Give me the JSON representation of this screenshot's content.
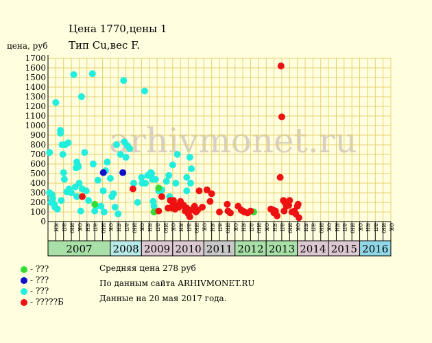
{
  "title_line1": "Цена 1770,цены 1",
  "title_line2": "Тип Cu,вес F.",
  "ylabel": "цена, руб",
  "watermark": "arhivmonet.ru",
  "legend": [
    {
      "label": "- ???",
      "color": "#33dd33"
    },
    {
      "label": "- ???",
      "color": "#1111cc"
    },
    {
      "label": "- ???",
      "color": "#22eedd"
    },
    {
      "label": "- ?????Б",
      "color": "#ee1111"
    }
  ],
  "info_lines": [
    "Средняя цена 278 руб",
    "По данным сайта ARHIVMONET.RU",
    "Данные на 20 мая 2017 года."
  ],
  "chart_data": {
    "type": "scatter",
    "ylim": [
      0,
      1700
    ],
    "yticks": [
      0,
      100,
      200,
      300,
      400,
      500,
      600,
      700,
      800,
      900,
      1000,
      1100,
      1200,
      1300,
      1400,
      1500,
      1600,
      1700
    ],
    "grid": true,
    "years": [
      {
        "label": "2007",
        "start": 0,
        "end": 4,
        "color": "#a8e0a8"
      },
      {
        "label": "2008",
        "start": 4,
        "end": 6,
        "color": "#b8eae8"
      },
      {
        "label": "2009",
        "start": 6,
        "end": 8,
        "color": "#dcc8d0"
      },
      {
        "label": "2010",
        "start": 8,
        "end": 10,
        "color": "#dcc8d0"
      },
      {
        "label": "2011",
        "start": 10,
        "end": 12,
        "color": "#c8c8c8"
      },
      {
        "label": "2012",
        "start": 12,
        "end": 14,
        "color": "#a8e0a8"
      },
      {
        "label": "2013",
        "start": 14,
        "end": 16,
        "color": "#a8e0a8"
      },
      {
        "label": "2014",
        "start": 16,
        "end": 18,
        "color": "#dcc8d0"
      },
      {
        "label": "2015",
        "start": 18,
        "end": 20,
        "color": "#dcc8d0"
      },
      {
        "label": "2016",
        "start": 20,
        "end": 22,
        "color": "#90d8e8"
      }
    ],
    "months": [
      "ян",
      "ап",
      "ию",
      "ок",
      "ян",
      "ап",
      "ию",
      "ок",
      "ян",
      "ап",
      "ию",
      "ок",
      "ян",
      "ап",
      "ию",
      "ок",
      "ян",
      "ап",
      "ию",
      "ок",
      "ян",
      "ап",
      "ию",
      "ок",
      "ян",
      "ап",
      "ию",
      "ок",
      "ян",
      "ап",
      "ию",
      "ок",
      "ян",
      "ап",
      "ию",
      "ок",
      "ян",
      "ап",
      "ию",
      "ок",
      "ян",
      "ап",
      "ию",
      "ок"
    ],
    "series": [
      {
        "color": "#22eedd",
        "points": [
          [
            0.1,
            720
          ],
          [
            0.1,
            300
          ],
          [
            0.2,
            200
          ],
          [
            0.25,
            280
          ],
          [
            0.3,
            240
          ],
          [
            0.4,
            180
          ],
          [
            0.45,
            150
          ],
          [
            0.5,
            1240
          ],
          [
            0.6,
            130
          ],
          [
            0.8,
            950
          ],
          [
            0.8,
            920
          ],
          [
            0.85,
            220
          ],
          [
            0.9,
            800
          ],
          [
            0.95,
            700
          ],
          [
            1.0,
            510
          ],
          [
            1.05,
            440
          ],
          [
            1.1,
            800
          ],
          [
            1.2,
            310
          ],
          [
            1.3,
            820
          ],
          [
            1.35,
            340
          ],
          [
            1.5,
            300
          ],
          [
            1.65,
            1530
          ],
          [
            1.75,
            360
          ],
          [
            1.8,
            560
          ],
          [
            1.85,
            620
          ],
          [
            1.85,
            260
          ],
          [
            1.9,
            590
          ],
          [
            1.95,
            570
          ],
          [
            2.0,
            400
          ],
          [
            2.1,
            110
          ],
          [
            2.15,
            1300
          ],
          [
            2.2,
            340
          ],
          [
            2.35,
            720
          ],
          [
            2.45,
            320
          ],
          [
            2.6,
            220
          ],
          [
            2.85,
            1540
          ],
          [
            2.9,
            600
          ],
          [
            3.0,
            110
          ],
          [
            3.1,
            160
          ],
          [
            3.2,
            430
          ],
          [
            3.4,
            160
          ],
          [
            3.55,
            320
          ],
          [
            3.6,
            100
          ],
          [
            3.7,
            530
          ],
          [
            3.8,
            620
          ],
          [
            4.0,
            450
          ],
          [
            4.1,
            260
          ],
          [
            4.2,
            290
          ],
          [
            4.3,
            150
          ],
          [
            4.4,
            800
          ],
          [
            4.5,
            80
          ],
          [
            4.65,
            700
          ],
          [
            4.85,
            1470
          ],
          [
            4.9,
            830
          ],
          [
            5.0,
            670
          ],
          [
            5.1,
            790
          ],
          [
            5.25,
            760
          ],
          [
            5.5,
            400
          ],
          [
            5.75,
            200
          ],
          [
            6.0,
            460
          ],
          [
            6.05,
            400
          ],
          [
            6.2,
            1360
          ],
          [
            6.25,
            400
          ],
          [
            6.4,
            480
          ],
          [
            6.6,
            510
          ],
          [
            6.65,
            500
          ],
          [
            6.7,
            440
          ],
          [
            6.75,
            210
          ],
          [
            6.8,
            160
          ],
          [
            6.9,
            440
          ],
          [
            7.1,
            320
          ],
          [
            7.3,
            330
          ],
          [
            7.6,
            420
          ],
          [
            7.75,
            480
          ],
          [
            7.8,
            260
          ],
          [
            8.0,
            590
          ],
          [
            8.2,
            400
          ],
          [
            8.3,
            700
          ],
          [
            8.9,
            320
          ],
          [
            8.9,
            460
          ],
          [
            9.1,
            670
          ],
          [
            9.15,
            400
          ],
          [
            9.2,
            550
          ]
        ]
      },
      {
        "color": "#33dd33",
        "points": [
          [
            3.0,
            180
          ],
          [
            7.1,
            350
          ],
          [
            6.8,
            100
          ],
          [
            13.2,
            100
          ]
        ]
      },
      {
        "color": "#1111cc",
        "points": [
          [
            3.55,
            510
          ],
          [
            4.8,
            510
          ]
        ]
      },
      {
        "color": "#ee1111",
        "points": [
          [
            2.2,
            260
          ],
          [
            5.45,
            340
          ],
          [
            7.1,
            110
          ],
          [
            7.3,
            260
          ],
          [
            7.7,
            140
          ],
          [
            7.85,
            220
          ],
          [
            7.95,
            140
          ],
          [
            8.0,
            160
          ],
          [
            8.05,
            220
          ],
          [
            8.15,
            130
          ],
          [
            8.3,
            170
          ],
          [
            8.4,
            150
          ],
          [
            8.5,
            210
          ],
          [
            8.55,
            180
          ],
          [
            8.7,
            170
          ],
          [
            8.8,
            110
          ],
          [
            8.9,
            140
          ],
          [
            9.0,
            80
          ],
          [
            9.1,
            50
          ],
          [
            9.2,
            120
          ],
          [
            9.35,
            140
          ],
          [
            9.4,
            160
          ],
          [
            9.5,
            100
          ],
          [
            9.6,
            120
          ],
          [
            9.7,
            320
          ],
          [
            9.9,
            150
          ],
          [
            10.2,
            330
          ],
          [
            10.4,
            210
          ],
          [
            10.5,
            290
          ],
          [
            11.0,
            100
          ],
          [
            11.5,
            180
          ],
          [
            11.55,
            110
          ],
          [
            11.7,
            90
          ],
          [
            12.2,
            160
          ],
          [
            12.4,
            120
          ],
          [
            12.5,
            110
          ],
          [
            12.6,
            100
          ],
          [
            12.8,
            90
          ],
          [
            13.0,
            110
          ],
          [
            14.3,
            130
          ],
          [
            14.45,
            120
          ],
          [
            14.5,
            90
          ],
          [
            14.6,
            110
          ],
          [
            14.7,
            60
          ],
          [
            14.9,
            460
          ],
          [
            14.95,
            1620
          ],
          [
            15.0,
            1090
          ],
          [
            15.1,
            220
          ],
          [
            15.15,
            110
          ],
          [
            15.2,
            200
          ],
          [
            15.3,
            160
          ],
          [
            15.45,
            170
          ],
          [
            15.5,
            220
          ],
          [
            15.65,
            100
          ],
          [
            15.8,
            110
          ],
          [
            15.9,
            80
          ],
          [
            16.0,
            160
          ],
          [
            16.05,
            180
          ],
          [
            16.1,
            40
          ]
        ]
      }
    ]
  }
}
